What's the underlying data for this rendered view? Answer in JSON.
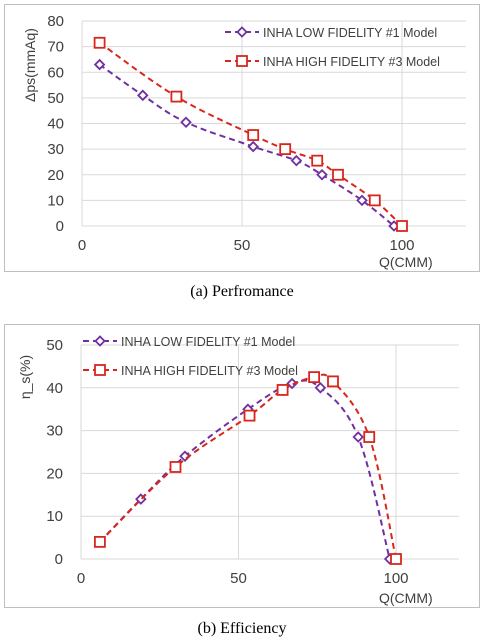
{
  "chart_data": [
    {
      "type": "line",
      "caption": "(a)  Perfromance",
      "xlabel": "Q(CMM)",
      "ylabel": "Δps(mmAq)",
      "xlim": [
        0,
        120
      ],
      "ylim": [
        0,
        80
      ],
      "xticks": [
        0,
        50,
        100
      ],
      "yticks": [
        0,
        10,
        20,
        30,
        40,
        50,
        60,
        70,
        80
      ],
      "grid": true,
      "legend_position": "top-right",
      "series": [
        {
          "name": "INHA LOW FIDELITY #1 Model",
          "color": "#7030a0",
          "marker": "diamond",
          "points": [
            [
              5.5,
              63
            ],
            [
              19,
              51
            ],
            [
              32.5,
              40.5
            ],
            [
              53.5,
              31
            ],
            [
              67,
              25.5
            ],
            [
              75,
              20
            ],
            [
              87.5,
              10
            ],
            [
              97.5,
              0
            ]
          ]
        },
        {
          "name": "INHA HIGH FIDELITY #3 Model",
          "color": "#d9261c",
          "marker": "square",
          "points": [
            [
              5.5,
              71.5
            ],
            [
              29.5,
              50.5
            ],
            [
              53.5,
              35.5
            ],
            [
              63.5,
              30
            ],
            [
              73.5,
              25.5
            ],
            [
              80,
              20
            ],
            [
              91.5,
              10
            ],
            [
              100,
              0
            ]
          ]
        }
      ]
    },
    {
      "type": "line",
      "caption": "(b)  Efficiency",
      "xlabel": "Q(CMM)",
      "ylabel": "η_s(%)",
      "xlim": [
        0,
        120
      ],
      "ylim": [
        0,
        50
      ],
      "xticks": [
        0,
        50,
        100
      ],
      "yticks": [
        0,
        10,
        20,
        30,
        40,
        50
      ],
      "grid": true,
      "legend_position": "top-left",
      "series": [
        {
          "name": "INHA LOW FIDELITY #1 Model",
          "color": "#7030a0",
          "marker": "diamond",
          "points": [
            [
              6,
              4
            ],
            [
              19,
              14
            ],
            [
              33,
              24
            ],
            [
              53,
              35
            ],
            [
              67,
              41
            ],
            [
              76,
              40
            ],
            [
              88,
              28.5
            ],
            [
              98,
              0
            ]
          ]
        },
        {
          "name": "INHA HIGH FIDELITY #3 Model",
          "color": "#d9261c",
          "marker": "square",
          "points": [
            [
              6,
              4
            ],
            [
              30,
              21.5
            ],
            [
              53.5,
              33.5
            ],
            [
              64,
              39.5
            ],
            [
              74,
              42.5
            ],
            [
              80,
              41.5
            ],
            [
              91.5,
              28.5
            ],
            [
              100,
              0
            ]
          ]
        }
      ]
    }
  ]
}
